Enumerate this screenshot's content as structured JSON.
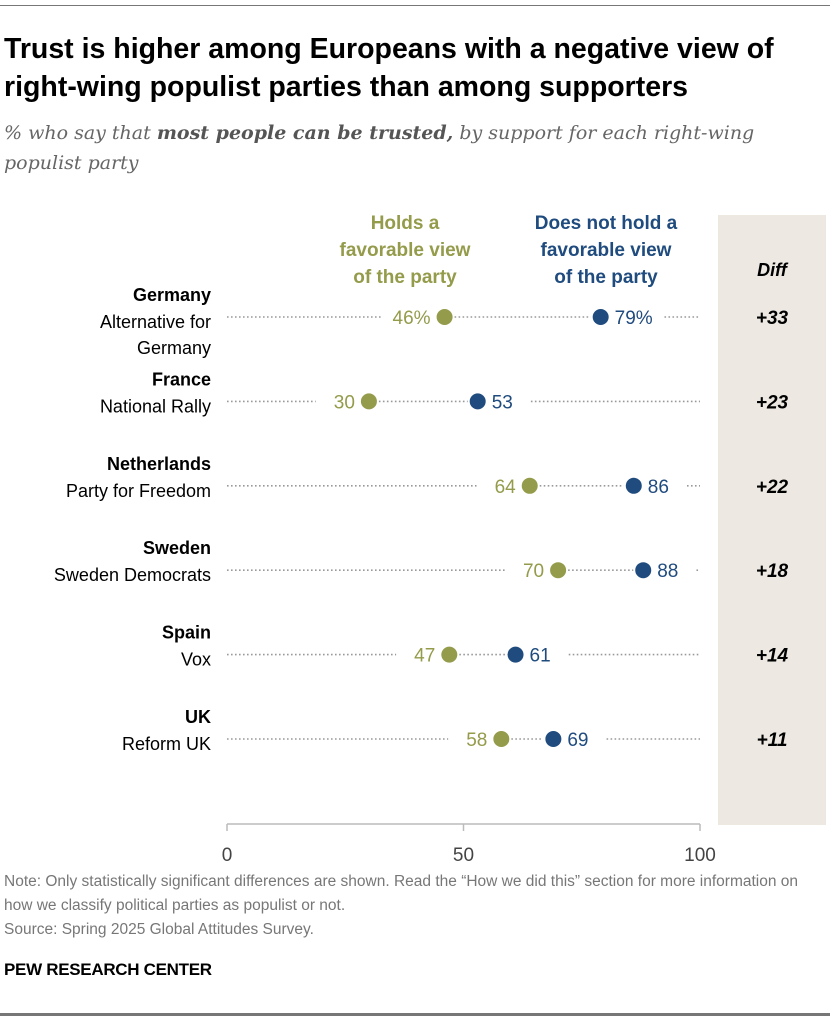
{
  "title": "Trust is higher among Europeans with a negative view of right-wing populist parties than among supporters",
  "subtitle": {
    "prefix": "% who say that ",
    "emphasis": "most people can be trusted,",
    "suffix": " by support for each right-wing populist party"
  },
  "note": "Note: Only statistically significant differences are shown. Read the “How we did this” section for more information on how we classify political parties as populist or not.",
  "source": "Source: Spring 2025 Global Attitudes Survey.",
  "brand": "PEW RESEARCH CENTER",
  "colors": {
    "favorable": "#949b4a",
    "not_favorable": "#1f4b7e",
    "diff_bg": "#ede9e2"
  },
  "chart_data": {
    "type": "dot",
    "xlim": [
      0,
      100
    ],
    "xticks": [
      "0",
      "50",
      "100"
    ],
    "diff_header": "Diff",
    "series": [
      {
        "name": "Holds a favorable view of the party",
        "key": "favorable"
      },
      {
        "name": "Does not hold a favorable view of the party",
        "key": "not_favorable"
      }
    ],
    "rows": [
      {
        "country": "Germany",
        "party": "Alternative for Germany",
        "favorable": 46,
        "not_favorable": 79,
        "fav_label": "46%",
        "notfav_label": "79%",
        "diff": "+33"
      },
      {
        "country": "France",
        "party": "National Rally",
        "favorable": 30,
        "not_favorable": 53,
        "fav_label": "30",
        "notfav_label": "53",
        "diff": "+23"
      },
      {
        "country": "Netherlands",
        "party": "Party for Freedom",
        "favorable": 64,
        "not_favorable": 86,
        "fav_label": "64",
        "notfav_label": "86",
        "diff": "+22"
      },
      {
        "country": "Sweden",
        "party": "Sweden Democrats",
        "favorable": 70,
        "not_favorable": 88,
        "fav_label": "70",
        "notfav_label": "88",
        "diff": "+18"
      },
      {
        "country": "Spain",
        "party": "Vox",
        "favorable": 47,
        "not_favorable": 61,
        "fav_label": "47",
        "notfav_label": "61",
        "diff": "+14"
      },
      {
        "country": "UK",
        "party": "Reform UK",
        "favorable": 58,
        "not_favorable": 69,
        "fav_label": "58",
        "notfav_label": "69",
        "diff": "+11"
      }
    ]
  }
}
